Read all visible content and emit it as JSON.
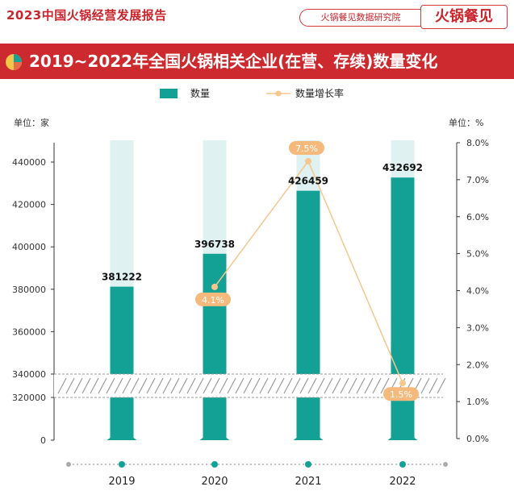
{
  "header": {
    "report_title": "2023中国火锅经营发展报告",
    "institute": "火锅餐见数据研究院",
    "brand": "火锅餐见"
  },
  "banner": {
    "title": "2019~2022年全国火锅相关企业(在营、存续)数量变化"
  },
  "colors": {
    "accent": "#cc2a2e",
    "bar": "#13a196",
    "bar_bg": "#dff2f1",
    "line": "#f7c68d",
    "badge": "#f6b97c"
  },
  "chart_data": {
    "type": "bar",
    "categories": [
      "2019",
      "2020",
      "2021",
      "2022"
    ],
    "series": [
      {
        "name": "数量",
        "type": "bar",
        "values": [
          381222,
          396738,
          426459,
          432692
        ]
      },
      {
        "name": "数量增长率",
        "type": "line",
        "axis": "right",
        "values": [
          null,
          4.1,
          7.5,
          1.5
        ],
        "labels": [
          "",
          "4.1%",
          "7.5%",
          "1.5%"
        ]
      }
    ],
    "value_labels": [
      "381222",
      "396738",
      "426459",
      "432692"
    ],
    "left_axis": {
      "unit": "单位：家",
      "ticks": [
        0,
        320000,
        340000,
        360000,
        380000,
        400000,
        420000,
        440000
      ],
      "tick_labels": [
        "0",
        "320000",
        "340000",
        "360000",
        "380000",
        "400000",
        "420000",
        "440000"
      ],
      "broken": true,
      "break_range": [
        320000,
        340000
      ]
    },
    "right_axis": {
      "unit": "单位：%",
      "ticks": [
        0,
        1,
        2,
        3,
        4,
        5,
        6,
        7,
        8
      ],
      "tick_labels": [
        "0.0%",
        "1.0%",
        "2.0%",
        "3.0%",
        "4.0%",
        "5.0%",
        "6.0%",
        "7.0%",
        "8.0%"
      ],
      "ylim": [
        0,
        8
      ]
    },
    "legend": {
      "position": "top-center"
    },
    "grid": false
  }
}
